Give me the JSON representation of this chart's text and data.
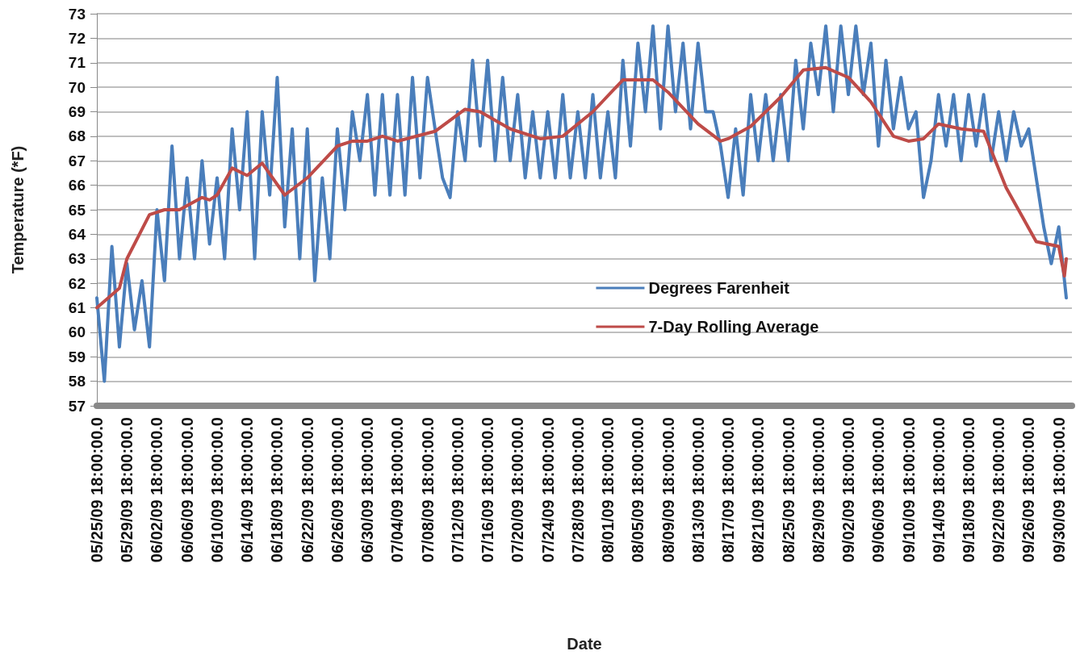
{
  "chart_data": {
    "type": "line",
    "xlabel": "Date",
    "ylabel": "Temperature (*F)",
    "xlim": [
      "--05-25T18:00",
      "--10-02T12:00"
    ],
    "xticks": [
      {
        "value": "--05-25T18:00",
        "label": "05/25/09 18:00:00.0"
      },
      {
        "value": "--05-29T18:00",
        "label": "05/29/09 18:00:00.0"
      },
      {
        "value": "--06-02T18:00",
        "label": "06/02/09 18:00:00.0"
      },
      {
        "value": "--06-06T18:00",
        "label": "06/06/09 18:00:00.0"
      },
      {
        "value": "--06-10T18:00",
        "label": "06/10/09 18:00:00.0"
      },
      {
        "value": "--06-14T18:00",
        "label": "06/14/09 18:00:00.0"
      },
      {
        "value": "--06-18T18:00",
        "label": "06/18/09 18:00:00.0"
      },
      {
        "value": "--06-22T18:00",
        "label": "06/22/09 18:00:00.0"
      },
      {
        "value": "--06-26T18:00",
        "label": "06/26/09 18:00:00.0"
      },
      {
        "value": "--06-30T18:00",
        "label": "06/30/09 18:00:00.0"
      },
      {
        "value": "--07-04T18:00",
        "label": "07/04/09 18:00:00.0"
      },
      {
        "value": "--07-08T18:00",
        "label": "07/08/09 18:00:00.0"
      },
      {
        "value": "--07-12T18:00",
        "label": "07/12/09 18:00:00.0"
      },
      {
        "value": "--07-16T18:00",
        "label": "07/16/09 18:00:00.0"
      },
      {
        "value": "--07-20T18:00",
        "label": "07/20/09 18:00:00.0"
      },
      {
        "value": "--07-24T18:00",
        "label": "07/24/09 18:00:00.0"
      },
      {
        "value": "--07-28T18:00",
        "label": "07/28/09 18:00:00.0"
      },
      {
        "value": "--08-01T18:00",
        "label": "08/01/09 18:00:00.0"
      },
      {
        "value": "--08-05T18:00",
        "label": "08/05/09 18:00:00.0"
      },
      {
        "value": "--08-09T18:00",
        "label": "08/09/09 18:00:00.0"
      },
      {
        "value": "--08-13T18:00",
        "label": "08/13/09 18:00:00.0"
      },
      {
        "value": "--08-17T18:00",
        "label": "08/17/09 18:00:00.0"
      },
      {
        "value": "--08-21T18:00",
        "label": "08/21/09 18:00:00.0"
      },
      {
        "value": "--08-25T18:00",
        "label": "08/25/09 18:00:00.0"
      },
      {
        "value": "--08-29T18:00",
        "label": "08/29/09 18:00:00.0"
      },
      {
        "value": "--09-02T18:00",
        "label": "09/02/09 18:00:00.0"
      },
      {
        "value": "--09-06T18:00",
        "label": "09/06/09 18:00:00.0"
      },
      {
        "value": "--09-10T18:00",
        "label": "09/10/09 18:00:00.0"
      },
      {
        "value": "--09-14T18:00",
        "label": "09/14/09 18:00:00.0"
      },
      {
        "value": "--09-18T18:00",
        "label": "09/18/09 18:00:00.0"
      },
      {
        "value": "--09-22T18:00",
        "label": "09/22/09 18:00:00.0"
      },
      {
        "value": "--09-26T18:00",
        "label": "09/26/09 18:00:00.0"
      },
      {
        "value": "--09-30T18:00",
        "label": "09/30/09 18:00:00.0"
      }
    ],
    "ylim": [
      57,
      73
    ],
    "yticks": [
      57,
      58,
      59,
      60,
      61,
      62,
      63,
      64,
      65,
      66,
      67,
      68,
      69,
      70,
      71,
      72,
      73
    ],
    "grid": "y",
    "legend": "bottom right",
    "marker": "none",
    "line_style": "solid",
    "series": [
      {
        "name": "Degrees Farenheit",
        "color": "#4a7ebb",
        "x": [
          "--05-25T18:00",
          "--05-26T18:00",
          "--05-27T18:00",
          "--05-28T18:00",
          "--05-29T18:00",
          "--05-30T18:00",
          "--05-31T18:00",
          "--06-01T18:00",
          "--06-02T18:00",
          "--06-03T18:00",
          "--06-04T18:00",
          "--06-05T18:00",
          "--06-06T18:00",
          "--06-07T18:00",
          "--06-08T18:00",
          "--06-09T18:00",
          "--06-10T18:00",
          "--06-11T18:00",
          "--06-12T18:00",
          "--06-13T18:00",
          "--06-14T18:00",
          "--06-15T18:00",
          "--06-16T18:00",
          "--06-17T18:00",
          "--06-18T18:00",
          "--06-19T18:00",
          "--06-20T18:00",
          "--06-21T18:00",
          "--06-22T18:00",
          "--06-23T18:00",
          "--06-24T18:00",
          "--06-25T18:00",
          "--06-26T18:00",
          "--06-27T18:00",
          "--06-28T18:00",
          "--06-29T18:00",
          "--06-30T18:00",
          "--07-01T18:00",
          "--07-02T18:00",
          "--07-03T18:00",
          "--07-04T18:00",
          "--07-05T18:00",
          "--07-06T18:00",
          "--07-07T18:00",
          "--07-08T18:00",
          "--07-09T18:00",
          "--07-10T18:00",
          "--07-11T18:00",
          "--07-12T18:00",
          "--07-13T18:00",
          "--07-14T18:00",
          "--07-15T18:00",
          "--07-16T18:00",
          "--07-17T18:00",
          "--07-18T18:00",
          "--07-19T18:00",
          "--07-20T18:00",
          "--07-21T18:00",
          "--07-22T18:00",
          "--07-23T18:00",
          "--07-24T18:00",
          "--07-25T18:00",
          "--07-26T18:00",
          "--07-27T18:00",
          "--07-28T18:00",
          "--07-29T18:00",
          "--07-30T18:00",
          "--07-31T18:00",
          "--08-01T18:00",
          "--08-02T18:00",
          "--08-03T18:00",
          "--08-04T18:00",
          "--08-05T18:00",
          "--08-06T18:00",
          "--08-07T18:00",
          "--08-08T18:00",
          "--08-09T18:00",
          "--08-10T18:00",
          "--08-11T18:00",
          "--08-12T18:00",
          "--08-13T18:00",
          "--08-14T18:00",
          "--08-15T18:00",
          "--08-16T18:00",
          "--08-17T18:00",
          "--08-18T18:00",
          "--08-19T18:00",
          "--08-20T18:00",
          "--08-21T18:00",
          "--08-22T18:00",
          "--08-23T18:00",
          "--08-24T18:00",
          "--08-25T18:00",
          "--08-26T18:00",
          "--08-27T18:00",
          "--08-28T18:00",
          "--08-29T18:00",
          "--08-30T18:00",
          "--08-31T18:00",
          "--09-01T18:00",
          "--09-02T18:00",
          "--09-03T18:00",
          "--09-04T18:00",
          "--09-05T18:00",
          "--09-06T18:00",
          "--09-07T18:00",
          "--09-08T18:00",
          "--09-09T18:00",
          "--09-10T18:00",
          "--09-11T18:00",
          "--09-12T18:00",
          "--09-13T18:00",
          "--09-14T18:00",
          "--09-15T18:00",
          "--09-16T18:00",
          "--09-17T18:00",
          "--09-18T18:00",
          "--09-19T18:00",
          "--09-20T18:00",
          "--09-21T18:00",
          "--09-22T18:00",
          "--09-23T18:00",
          "--09-24T18:00",
          "--09-25T18:00",
          "--09-26T18:00",
          "--09-27T18:00",
          "--09-28T18:00",
          "--09-29T18:00",
          "--09-30T18:00",
          "--10-01T18:00"
        ],
        "values": [
          61.4,
          58.0,
          63.5,
          59.4,
          62.8,
          60.1,
          62.1,
          59.4,
          65.0,
          62.1,
          67.6,
          63.0,
          66.3,
          63.0,
          67.0,
          63.6,
          66.3,
          63.0,
          68.3,
          65.0,
          69.0,
          63.0,
          69.0,
          65.6,
          70.4,
          64.3,
          68.3,
          63.0,
          68.3,
          62.1,
          66.3,
          63.0,
          68.3,
          65.0,
          69.0,
          67.0,
          69.7,
          65.6,
          69.7,
          65.6,
          69.7,
          65.6,
          70.4,
          66.3,
          70.4,
          68.3,
          66.3,
          65.5,
          69.0,
          67.0,
          71.1,
          67.6,
          71.1,
          67.0,
          70.4,
          67.0,
          69.7,
          66.3,
          69.0,
          66.3,
          69.0,
          66.3,
          69.7,
          66.3,
          69.0,
          66.3,
          69.7,
          66.3,
          69.0,
          66.3,
          71.1,
          67.6,
          71.8,
          69.0,
          72.5,
          68.3,
          72.5,
          69.0,
          71.8,
          68.3,
          71.8,
          69.0,
          69.0,
          67.6,
          65.5,
          68.3,
          65.6,
          69.7,
          67.0,
          69.7,
          67.0,
          69.7,
          67.0,
          71.1,
          68.3,
          71.8,
          69.7,
          72.5,
          69.0,
          72.5,
          69.7,
          72.5,
          69.7,
          71.8,
          67.6,
          71.1,
          68.3,
          70.4,
          68.3,
          69.0,
          65.5,
          67.0,
          69.7,
          67.6,
          69.7,
          67.0,
          69.7,
          67.6,
          69.7,
          67.0,
          69.0,
          67.0,
          69.0,
          67.6,
          68.3,
          66.3,
          64.3,
          62.8,
          64.3,
          61.4
        ]
      },
      {
        "name": "7-Day Rolling Average",
        "color": "#be4b48",
        "x": [
          "--05-25T18:00",
          "--05-28T18:00",
          "--05-29T18:00",
          "--06-01T18:00",
          "--06-03T18:00",
          "--06-05T18:00",
          "--06-08T18:00",
          "--06-09T18:00",
          "--06-10T18:00",
          "--06-12T18:00",
          "--06-14T18:00",
          "--06-16T18:00",
          "--06-19T18:00",
          "--06-22T18:00",
          "--06-26T18:00",
          "--06-28T18:00",
          "--06-30T18:00",
          "--07-02T18:00",
          "--07-04T18:00",
          "--07-09T18:00",
          "--07-13T18:00",
          "--07-15T18:00",
          "--07-19T18:00",
          "--07-23T18:00",
          "--07-26T18:00",
          "--07-30T18:00",
          "--08-03T18:00",
          "--08-07T18:00",
          "--08-09T18:00",
          "--08-13T18:00",
          "--08-16T18:00",
          "--08-17T18:00",
          "--08-20T18:00",
          "--08-24T18:00",
          "--08-27T18:00",
          "--08-30T18:00",
          "--09-02T18:00",
          "--09-05T18:00",
          "--09-08T18:00",
          "--09-10T18:00",
          "--09-12T18:00",
          "--09-14T18:00",
          "--09-17T18:00",
          "--09-20T18:00",
          "--09-23T18:00",
          "--09-27T18:00",
          "--09-30T18:00",
          "--10-01T12:00",
          "--10-01T18:00"
        ],
        "values": [
          61.0,
          61.8,
          63.0,
          64.8,
          65.0,
          65.0,
          65.5,
          65.4,
          65.6,
          66.7,
          66.4,
          66.9,
          65.6,
          66.3,
          67.6,
          67.8,
          67.8,
          68.0,
          67.8,
          68.2,
          69.1,
          69.0,
          68.3,
          67.9,
          68.0,
          69.0,
          70.3,
          70.3,
          69.8,
          68.5,
          67.8,
          67.9,
          68.4,
          69.6,
          70.7,
          70.8,
          70.4,
          69.4,
          68.0,
          67.8,
          67.9,
          68.5,
          68.3,
          68.2,
          65.9,
          63.7,
          63.5,
          62.3,
          63.0
        ]
      }
    ]
  }
}
